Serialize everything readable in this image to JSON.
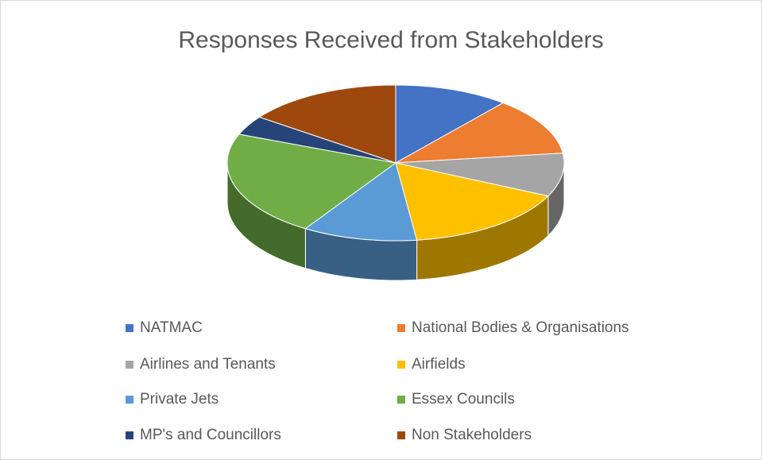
{
  "chart_data": {
    "type": "pie3d",
    "title": "Responses Received from Stakeholders",
    "categories": [
      "NATMAC",
      "National Bodies & Organisations",
      "Airlines and Tenants",
      "Airfields",
      "Private Jets",
      "Essex Councils",
      "MP's and Councillors",
      "Non Stakeholders"
    ],
    "values": [
      11,
      12,
      9,
      16,
      11,
      22,
      4,
      15
    ],
    "colors": [
      "#4472c4",
      "#ed7d31",
      "#a5a5a5",
      "#ffc000",
      "#5b9bd5",
      "#70ad47",
      "#264478",
      "#9e480e"
    ],
    "legend": "bottom"
  }
}
